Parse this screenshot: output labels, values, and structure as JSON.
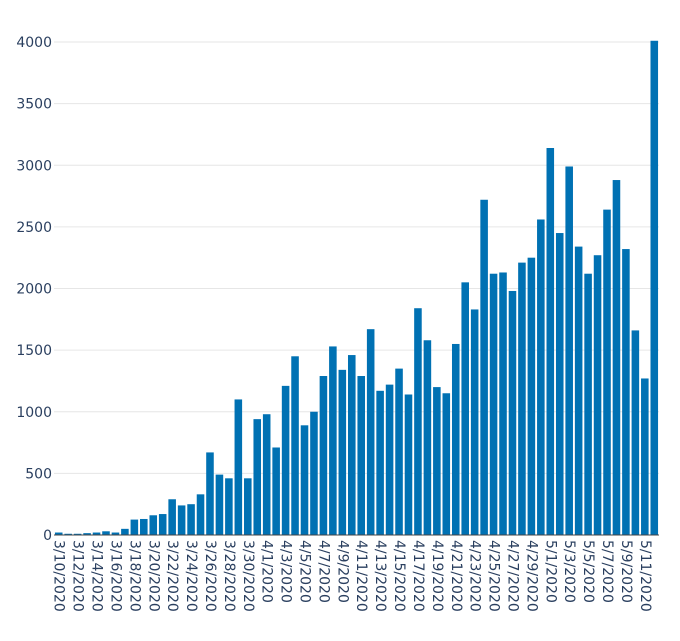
{
  "chart_data": {
    "type": "bar",
    "title": "",
    "xlabel": "",
    "ylabel": "",
    "ylim": [
      0,
      4100
    ],
    "yticks": [
      0,
      500,
      1000,
      1500,
      2000,
      2500,
      3000,
      3500,
      4000
    ],
    "xtick_labels": [
      "3/10/2020",
      "3/12/2020",
      "3/14/2020",
      "3/16/2020",
      "3/18/2020",
      "3/20/2020",
      "3/22/2020",
      "3/24/2020",
      "3/26/2020",
      "3/28/2020",
      "3/30/2020",
      "4/1/2020",
      "4/3/2020",
      "4/5/2020",
      "4/7/2020",
      "4/9/2020",
      "4/11/2020",
      "4/13/2020",
      "4/15/2020",
      "4/17/2020",
      "4/19/2020",
      "4/21/2020",
      "4/23/2020",
      "4/25/2020",
      "4/27/2020",
      "4/29/2020",
      "5/1/2020",
      "5/3/2020",
      "5/5/2020",
      "5/7/2020",
      "5/9/2020",
      "5/11/2020"
    ],
    "grid": true,
    "bar_color": "#0071b3",
    "categories": [
      "3/10/2020",
      "3/11/2020",
      "3/12/2020",
      "3/13/2020",
      "3/14/2020",
      "3/15/2020",
      "3/16/2020",
      "3/17/2020",
      "3/18/2020",
      "3/19/2020",
      "3/20/2020",
      "3/21/2020",
      "3/22/2020",
      "3/23/2020",
      "3/24/2020",
      "3/25/2020",
      "3/26/2020",
      "3/27/2020",
      "3/28/2020",
      "3/29/2020",
      "3/30/2020",
      "3/31/2020",
      "4/1/2020",
      "4/2/2020",
      "4/3/2020",
      "4/4/2020",
      "4/5/2020",
      "4/6/2020",
      "4/7/2020",
      "4/8/2020",
      "4/9/2020",
      "4/10/2020",
      "4/11/2020",
      "4/12/2020",
      "4/13/2020",
      "4/14/2020",
      "4/15/2020",
      "4/16/2020",
      "4/17/2020",
      "4/18/2020",
      "4/19/2020",
      "4/20/2020",
      "4/21/2020",
      "4/22/2020",
      "4/23/2020",
      "4/24/2020",
      "4/25/2020",
      "4/26/2020",
      "4/27/2020",
      "4/28/2020",
      "4/29/2020",
      "4/30/2020",
      "5/1/2020",
      "5/2/2020",
      "5/3/2020",
      "5/4/2020",
      "5/5/2020",
      "5/6/2020",
      "5/7/2020",
      "5/8/2020",
      "5/9/2020",
      "5/10/2020",
      "5/11/2020",
      "5/12/2020"
    ],
    "values": [
      20,
      10,
      10,
      15,
      20,
      30,
      20,
      50,
      125,
      130,
      160,
      170,
      290,
      240,
      250,
      330,
      670,
      490,
      460,
      1100,
      460,
      940,
      980,
      710,
      1210,
      1450,
      890,
      1000,
      1290,
      1530,
      1340,
      1460,
      1290,
      1670,
      1170,
      1220,
      1350,
      1140,
      1840,
      1580,
      1200,
      1150,
      1550,
      2050,
      1830,
      2720,
      2120,
      2130,
      1980,
      2210,
      2250,
      2560,
      3140,
      2450,
      2990,
      2340,
      2120,
      2270,
      2640,
      2880,
      2320,
      1660,
      1270,
      4010
    ]
  }
}
